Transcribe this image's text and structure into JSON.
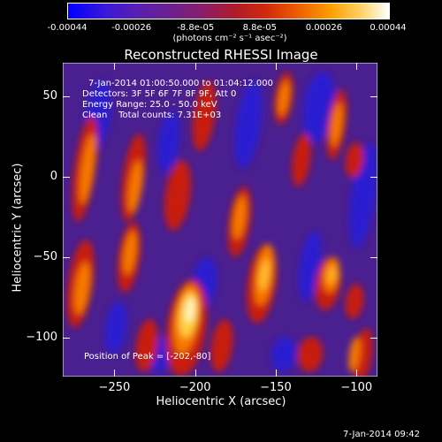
{
  "colorbar": {
    "ticks": [
      "-0.00044",
      "-0.00026",
      "-8.8e-05",
      "8.8e-05",
      "0.00026",
      "0.00044"
    ],
    "units_line": "(photons cm⁻² s⁻¹ asec⁻²)",
    "range": [
      -0.00044,
      0.00044
    ]
  },
  "chart_data": {
    "type": "heatmap",
    "title": "Reconstructed RHESSI Image",
    "xlabel": "Heliocentric X (arcsec)",
    "ylabel": "Heliocentric Y (arcsec)",
    "xlim": [
      -282,
      -87
    ],
    "ylim": [
      -124,
      71
    ],
    "xticks": [
      -250,
      -200,
      -150,
      -100
    ],
    "yticks": [
      50,
      0,
      -50,
      -100
    ],
    "xtick_labels": [
      "−250",
      "−200",
      "−150",
      "−100"
    ],
    "ytick_labels": [
      "50",
      "0",
      "−50",
      "−100"
    ],
    "colormap": "rainbow-blue-purple-red-yellow-white",
    "peak": [
      -202,
      -80
    ],
    "annotations": {
      "time_range": "7-Jan-2014 01:00:50.000 to 01:04:12.000",
      "detectors": "Detectors: 3F 5F 6F 7F 8F 9F, Att 0",
      "energy_range": "Energy Range: 25.0 - 50.0 keV",
      "clean": "Clean    Total counts: 7.31E+03",
      "peak_label": "Position of Peak = [-202,-80]"
    }
  },
  "footer": {
    "timestamp": "7-Jan-2014 09:42"
  }
}
